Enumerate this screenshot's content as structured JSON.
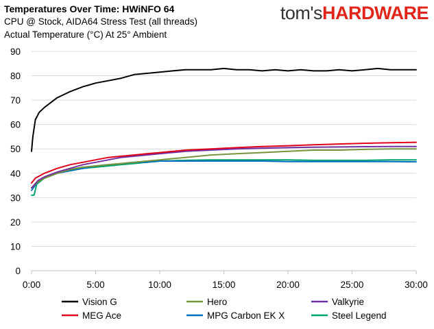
{
  "header": {
    "logo_part1": "tom's",
    "logo_part2": "HARDWARE"
  },
  "chart_data": {
    "type": "line",
    "title": "Temperatures Over Time: HWiNFO 64",
    "subtitle_lines": [
      "CPU @ Stock, AIDA64 Stress Test (all threads)",
      "Actual Temperature (°C) At 25° Ambient"
    ],
    "xlabel": "",
    "ylabel": "",
    "x_unit": "minutes",
    "xlim": [
      0,
      30
    ],
    "ylim": [
      0,
      90
    ],
    "x_ticks": [
      "0:00",
      "5:00",
      "10:00",
      "15:00",
      "20:00",
      "25:00",
      "30:00"
    ],
    "y_ticks": [
      "0",
      "10",
      "20",
      "30",
      "40",
      "50",
      "60",
      "70",
      "80",
      "90"
    ],
    "grid": "horizontal",
    "legend_position": "bottom",
    "series": [
      {
        "name": "Vision G",
        "color": "#000000",
        "x": [
          0,
          0.1,
          0.3,
          0.6,
          1,
          1.5,
          2,
          3,
          4,
          5,
          6,
          7,
          8,
          9,
          10,
          11,
          12,
          13,
          14,
          15,
          16,
          17,
          18,
          19,
          20,
          21,
          22,
          23,
          24,
          25,
          26,
          27,
          28,
          29,
          30
        ],
        "y": [
          49,
          55,
          62,
          65,
          67,
          69,
          71,
          73.5,
          75.5,
          77,
          78,
          79,
          80.5,
          81,
          81.5,
          82,
          82.5,
          82.5,
          82.5,
          83,
          82.5,
          82.5,
          82,
          82.5,
          82,
          82.5,
          82,
          82,
          82.5,
          82,
          82.5,
          83,
          82.5,
          82.5,
          82.5
        ]
      },
      {
        "name": "Hero",
        "color": "#77933c",
        "x": [
          0,
          0.5,
          1,
          2,
          3,
          4,
          5,
          6,
          7,
          8,
          9,
          10,
          12,
          14,
          16,
          18,
          20,
          22,
          24,
          26,
          28,
          30
        ],
        "y": [
          34,
          36.5,
          38,
          40,
          41.5,
          42.5,
          43,
          43.5,
          44,
          44.5,
          45,
          45.5,
          46.5,
          47.5,
          48,
          48.5,
          49,
          49.5,
          49.5,
          49.8,
          50,
          50
        ]
      },
      {
        "name": "Valkyrie",
        "color": "#7030a0",
        "x": [
          0,
          0.5,
          1,
          2,
          3,
          4,
          5,
          6,
          7,
          8,
          9,
          10,
          12,
          14,
          16,
          18,
          20,
          22,
          24,
          26,
          28,
          30
        ],
        "y": [
          34,
          37,
          38.5,
          40.5,
          42,
          43.5,
          44.5,
          45.5,
          46.5,
          47,
          47.5,
          48,
          49,
          49.5,
          50,
          50.3,
          50.5,
          50.7,
          50.8,
          50.9,
          51,
          51
        ]
      },
      {
        "name": "MEG Ace",
        "color": "#e0001b",
        "x": [
          0,
          0.3,
          1,
          2,
          3,
          4,
          5,
          6,
          7,
          8,
          9,
          10,
          12,
          14,
          16,
          18,
          20,
          22,
          24,
          26,
          28,
          30
        ],
        "y": [
          36,
          38,
          40,
          42,
          43.5,
          44.5,
          45.5,
          46.5,
          47,
          47.5,
          48,
          48.5,
          49.5,
          50,
          50.5,
          51,
          51.3,
          51.7,
          52,
          52.3,
          52.5,
          52.7
        ]
      },
      {
        "name": "MPG Carbon EK X",
        "color": "#0070c0",
        "x": [
          0,
          0.5,
          1,
          2,
          3,
          4,
          5,
          6,
          7,
          8,
          9,
          10,
          12,
          14,
          16,
          18,
          20,
          22,
          24,
          26,
          28,
          30
        ],
        "y": [
          33,
          36.5,
          38,
          40,
          41,
          42,
          43,
          43.5,
          44,
          44.5,
          44.5,
          45,
          45,
          45,
          45,
          45,
          44.8,
          44.8,
          44.8,
          44.8,
          44.8,
          44.7
        ]
      },
      {
        "name": "Steel Legend",
        "color": "#00a36c",
        "x": [
          0,
          0.2,
          0.4,
          1,
          2,
          3,
          4,
          5,
          6,
          7,
          8,
          9,
          10,
          12,
          14,
          16,
          18,
          20,
          22,
          24,
          26,
          28,
          30
        ],
        "y": [
          31,
          31,
          35.5,
          38,
          40,
          41,
          42,
          42.5,
          43,
          43.5,
          44,
          44.5,
          45,
          45.3,
          45.5,
          45.5,
          45.5,
          45.5,
          45.3,
          45.3,
          45.3,
          45.5,
          45.5
        ]
      }
    ]
  }
}
